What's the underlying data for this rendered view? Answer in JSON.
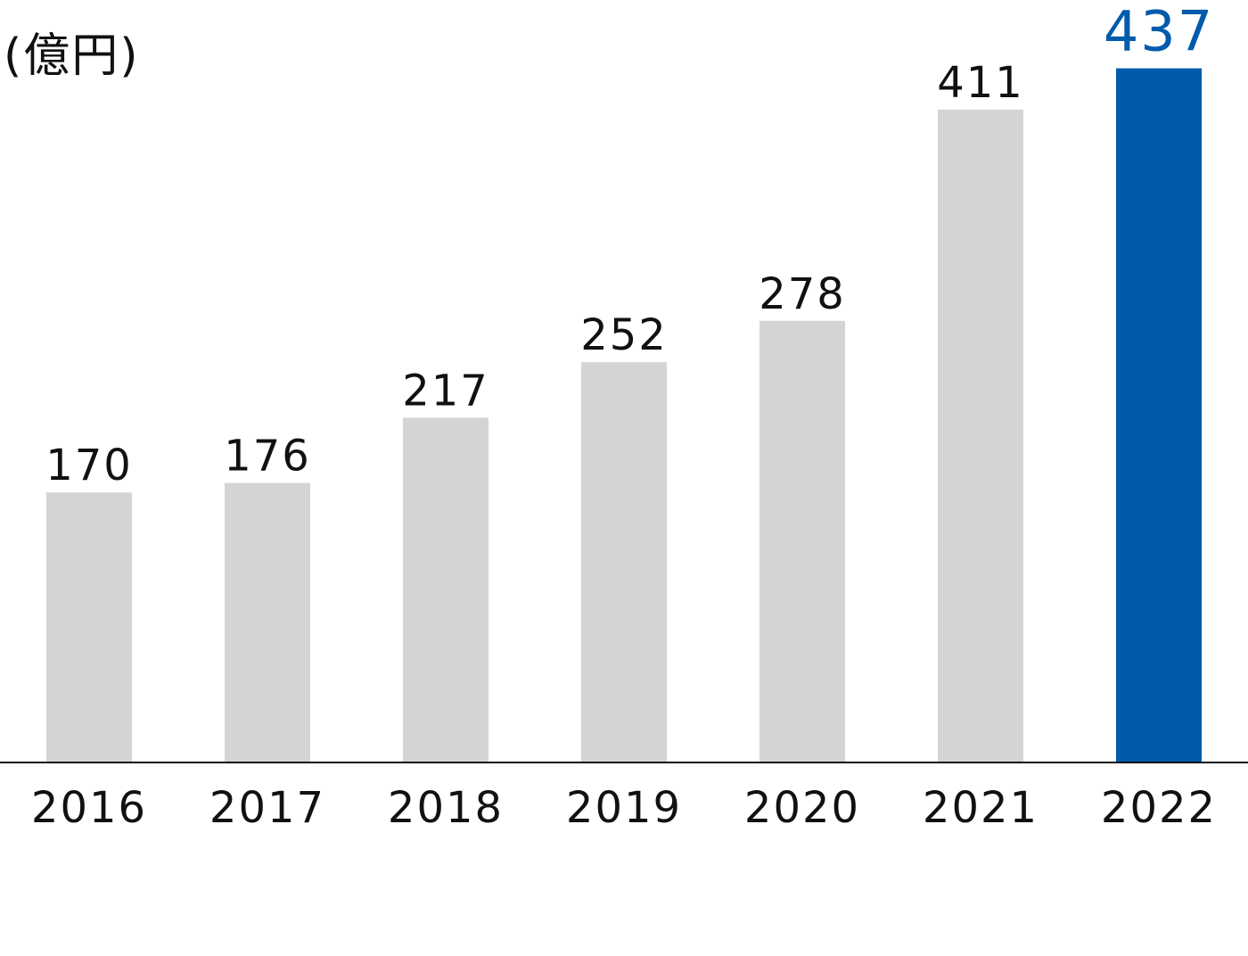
{
  "chart_data": {
    "type": "bar",
    "y_label": "(億円)",
    "categories": [
      "2016",
      "2017",
      "2018",
      "2019",
      "2020",
      "2021",
      "2022"
    ],
    "values": [
      170,
      176,
      217,
      252,
      278,
      411,
      437
    ],
    "colors": [
      "#d4d4d4",
      "#d4d4d4",
      "#d4d4d4",
      "#d4d4d4",
      "#d4d4d4",
      "#d4d4d4",
      "#005bab"
    ],
    "ylim": [
      0,
      480
    ]
  }
}
